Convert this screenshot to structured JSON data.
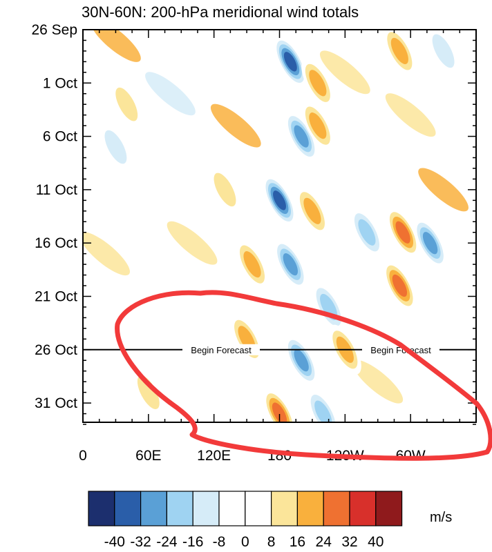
{
  "chart_data": {
    "type": "heatmap",
    "title": "30N-60N: 200-hPa meridional wind totals",
    "x_ticks": [
      "0",
      "60E",
      "120E",
      "180",
      "120W",
      "60W"
    ],
    "x_tick_positions_deg": [
      0,
      60,
      120,
      180,
      240,
      300
    ],
    "x_range_deg": [
      0,
      360
    ],
    "y_ticks": [
      "26 Sep",
      "1 Oct",
      "6 Oct",
      "11 Oct",
      "16 Oct",
      "21 Oct",
      "26 Oct",
      "31 Oct"
    ],
    "y_range_days": [
      0,
      37
    ],
    "forecast_start_day": 30,
    "forecast_labels": [
      "Begin Forecast",
      "Begin Forecast"
    ],
    "legend": {
      "unit": "m/s",
      "levels": [
        "-40",
        "-32",
        "-24",
        "-16",
        "-8",
        "0",
        "8",
        "16",
        "24",
        "32",
        "40"
      ],
      "colors": [
        "#1c2f6e",
        "#2a5ea9",
        "#5aa0d6",
        "#9fd3f2",
        "#d6ecf8",
        "#ffffff",
        "#ffffff",
        "#fbe59a",
        "#f9b03d",
        "#ef7131",
        "#d8302b",
        "#8f1a1c"
      ]
    },
    "features": [
      {
        "kind": "wave-packet",
        "phase": "negative",
        "level": -40,
        "lon_deg": 190,
        "day": 3
      },
      {
        "kind": "wave-packet",
        "phase": "positive",
        "level": 24,
        "lon_deg": 215,
        "day": 5
      },
      {
        "kind": "wave-packet",
        "phase": "negative",
        "level": -32,
        "lon_deg": 200,
        "day": 10
      },
      {
        "kind": "wave-packet",
        "phase": "positive",
        "level": 24,
        "lon_deg": 215,
        "day": 9
      },
      {
        "kind": "wave-packet",
        "phase": "negative",
        "level": -40,
        "lon_deg": 180,
        "day": 16
      },
      {
        "kind": "wave-packet",
        "phase": "positive",
        "level": 24,
        "lon_deg": 210,
        "day": 17
      },
      {
        "kind": "wave-packet",
        "phase": "positive",
        "level": 16,
        "lon_deg": 130,
        "day": 15
      },
      {
        "kind": "wave-packet",
        "phase": "positive",
        "level": 32,
        "lon_deg": 293,
        "day": 19
      },
      {
        "kind": "wave-packet",
        "phase": "negative",
        "level": -32,
        "lon_deg": 318,
        "day": 20
      },
      {
        "kind": "wave-packet",
        "phase": "negative",
        "level": -24,
        "lon_deg": 260,
        "day": 19
      },
      {
        "kind": "wave-packet",
        "phase": "positive",
        "level": 32,
        "lon_deg": 290,
        "day": 24
      },
      {
        "kind": "wave-packet",
        "phase": "negative",
        "level": -32,
        "lon_deg": 190,
        "day": 22
      },
      {
        "kind": "wave-packet",
        "phase": "positive",
        "level": 24,
        "lon_deg": 155,
        "day": 22
      },
      {
        "kind": "wave-packet",
        "phase": "negative",
        "level": -24,
        "lon_deg": 225,
        "day": 26
      },
      {
        "kind": "wave-packet",
        "phase": "positive",
        "level": 24,
        "lon_deg": 150,
        "day": 29
      },
      {
        "kind": "wave-packet",
        "phase": "negative",
        "level": -32,
        "lon_deg": 200,
        "day": 31
      },
      {
        "kind": "wave-packet",
        "phase": "positive",
        "level": 24,
        "lon_deg": 240,
        "day": 30
      },
      {
        "kind": "wave-packet",
        "phase": "positive",
        "level": 32,
        "lon_deg": 180,
        "day": 36
      },
      {
        "kind": "wave-packet",
        "phase": "negative",
        "level": -24,
        "lon_deg": 220,
        "day": 36
      },
      {
        "kind": "wave-packet",
        "phase": "positive",
        "level": 16,
        "lon_deg": 60,
        "day": 34
      },
      {
        "kind": "wave-packet",
        "phase": "negative",
        "level": -16,
        "lon_deg": 30,
        "day": 11
      },
      {
        "kind": "wave-packet",
        "phase": "positive",
        "level": 16,
        "lon_deg": 40,
        "day": 7
      },
      {
        "kind": "wave-packet",
        "phase": "negative",
        "level": -16,
        "lon_deg": 330,
        "day": 2
      },
      {
        "kind": "wave-packet",
        "phase": "positive",
        "level": 24,
        "lon_deg": 290,
        "day": 2
      }
    ],
    "annotation": {
      "kind": "hand-drawn-ellipse",
      "color": "#f23a3a"
    }
  }
}
